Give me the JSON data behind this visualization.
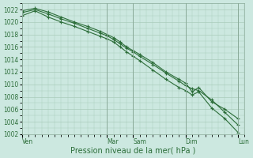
{
  "title": "",
  "xlabel": "Pression niveau de la mer( hPa )",
  "background_color": "#cce8e0",
  "grid_color": "#aaccbb",
  "line_color": "#2d6e3a",
  "ylim": [
    1002,
    1023
  ],
  "yticks": [
    1002,
    1004,
    1006,
    1008,
    1010,
    1012,
    1014,
    1016,
    1018,
    1020,
    1022
  ],
  "day_labels": [
    "Ven",
    "Mar",
    "Sam",
    "Dim",
    "Lun"
  ],
  "day_tick_positions": [
    0,
    13,
    17,
    25,
    33
  ],
  "xlim": [
    0,
    34
  ],
  "line1_x": [
    0,
    2,
    4,
    6,
    8,
    10,
    12,
    13,
    14,
    15,
    16,
    17,
    18,
    20,
    22,
    24,
    25,
    26,
    27,
    29,
    31,
    33
  ],
  "line1_y": [
    1021.5,
    1022.0,
    1021.3,
    1020.5,
    1019.8,
    1019.0,
    1018.2,
    1017.8,
    1017.2,
    1016.5,
    1015.8,
    1015.2,
    1014.5,
    1013.2,
    1011.8,
    1010.5,
    1009.8,
    1009.3,
    1009.0,
    1007.5,
    1005.5,
    1003.5
  ],
  "line2_x": [
    0,
    2,
    4,
    6,
    8,
    10,
    12,
    13,
    14,
    15,
    16,
    17,
    18,
    20,
    22,
    24,
    25,
    26,
    27,
    29,
    31,
    33
  ],
  "line2_y": [
    1021.0,
    1021.8,
    1020.8,
    1020.0,
    1019.3,
    1018.5,
    1017.7,
    1017.3,
    1016.8,
    1016.0,
    1015.2,
    1014.5,
    1013.8,
    1012.3,
    1010.8,
    1009.5,
    1009.0,
    1008.3,
    1008.8,
    1006.2,
    1004.5,
    1002.3
  ],
  "line3_x": [
    0,
    2,
    4,
    6,
    8,
    10,
    12,
    13,
    14,
    15,
    16,
    17,
    18,
    20,
    22,
    24,
    25,
    26,
    27,
    29,
    31,
    33
  ],
  "line3_y": [
    1021.8,
    1022.2,
    1021.6,
    1020.8,
    1020.0,
    1019.3,
    1018.5,
    1018.0,
    1017.5,
    1016.8,
    1016.0,
    1015.4,
    1014.8,
    1013.5,
    1012.0,
    1010.8,
    1010.2,
    1008.8,
    1009.5,
    1007.2,
    1006.0,
    1004.5
  ],
  "marker_size": 2.5,
  "line_width": 0.8,
  "xlabel_fontsize": 7,
  "tick_fontsize": 5.5,
  "tick_label_color": "#2d6e3a",
  "minor_grid_divisions": 6
}
